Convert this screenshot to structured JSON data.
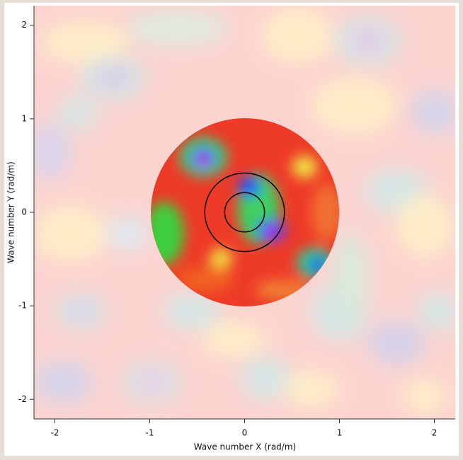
{
  "chart_data": {
    "type": "wavenumber",
    "x_label": "Wave number X (rad/m)",
    "y_label": "Wave number Y (rad/m)",
    "xlim": [
      -2.22,
      2.22
    ],
    "ylim": [
      -2.21,
      2.21
    ],
    "xticks": [
      -2,
      -1,
      0,
      1,
      2
    ],
    "yticks": [
      -2,
      -1,
      0,
      1,
      2
    ],
    "circles": [
      {
        "r": 0.21,
        "color": "#000000"
      },
      {
        "r": 0.42,
        "color": "#000000"
      }
    ]
  }
}
